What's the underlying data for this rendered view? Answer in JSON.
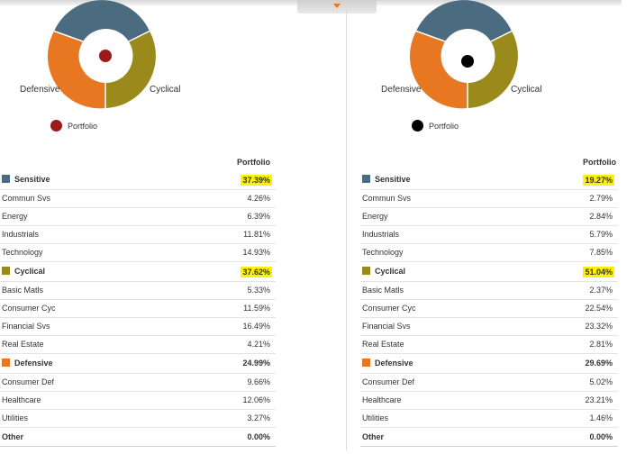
{
  "colors": {
    "sensitive": "#4b6b80",
    "cyclical": "#9a8a1c",
    "defensive": "#e87722",
    "highlight": "#fff200",
    "left_dot": "#9b1b1b",
    "right_dot": "#000000"
  },
  "header": {
    "collapse_icon": "chevron-down-icon"
  },
  "panels": [
    {
      "labels": {
        "defensive": "Defensive",
        "cyclical": "Cyclical"
      },
      "legend": "Portfolio",
      "column_header": "Portfolio",
      "groups": [
        {
          "name": "Sensitive",
          "value": "37.39%",
          "highlight": true,
          "rows": [
            {
              "name": "Commun Svs",
              "value": "4.26%"
            },
            {
              "name": "Energy",
              "value": "6.39%"
            },
            {
              "name": "Industrials",
              "value": "11.81%"
            },
            {
              "name": "Technology",
              "value": "14.93%"
            }
          ]
        },
        {
          "name": "Cyclical",
          "value": "37.62%",
          "highlight": true,
          "rows": [
            {
              "name": "Basic Matls",
              "value": "5.33%"
            },
            {
              "name": "Consumer Cyc",
              "value": "11.59%"
            },
            {
              "name": "Financial Svs",
              "value": "16.49%"
            },
            {
              "name": "Real Estate",
              "value": "4.21%"
            }
          ]
        },
        {
          "name": "Defensive",
          "value": "24.99%",
          "highlight": false,
          "rows": [
            {
              "name": "Consumer Def",
              "value": "9.66%"
            },
            {
              "name": "Healthcare",
              "value": "12.06%"
            },
            {
              "name": "Utilities",
              "value": "3.27%"
            }
          ]
        }
      ],
      "other": {
        "name": "Other",
        "value": "0.00%"
      }
    },
    {
      "labels": {
        "defensive": "Defensive",
        "cyclical": "Cyclical"
      },
      "legend": "Portfolio",
      "column_header": "Portfolio",
      "groups": [
        {
          "name": "Sensitive",
          "value": "19.27%",
          "highlight": true,
          "rows": [
            {
              "name": "Commun Svs",
              "value": "2.79%"
            },
            {
              "name": "Energy",
              "value": "2.84%"
            },
            {
              "name": "Industrials",
              "value": "5.79%"
            },
            {
              "name": "Technology",
              "value": "7.85%"
            }
          ]
        },
        {
          "name": "Cyclical",
          "value": "51.04%",
          "highlight": true,
          "rows": [
            {
              "name": "Basic Matls",
              "value": "2.37%"
            },
            {
              "name": "Consumer Cyc",
              "value": "22.54%"
            },
            {
              "name": "Financial Svs",
              "value": "23.32%"
            },
            {
              "name": "Real Estate",
              "value": "2.81%"
            }
          ]
        },
        {
          "name": "Defensive",
          "value": "29.69%",
          "highlight": false,
          "rows": [
            {
              "name": "Consumer Def",
              "value": "5.02%"
            },
            {
              "name": "Healthcare",
              "value": "23.21%"
            },
            {
              "name": "Utilities",
              "value": "1.46%"
            }
          ]
        }
      ],
      "other": {
        "name": "Other",
        "value": "0.00%"
      }
    }
  ]
}
